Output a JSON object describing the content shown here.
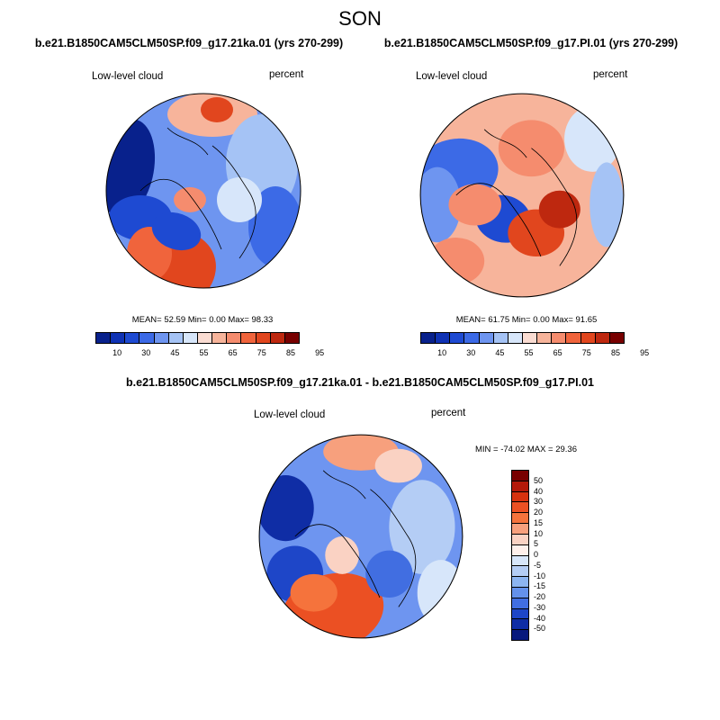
{
  "season": "SON",
  "panels": [
    {
      "title": "b.e21.B1850CAM5CLM50SP.f09_g17.21ka.01 (yrs 270-299)",
      "left_label": "Low-level cloud",
      "right_label": "percent",
      "stats": "MEAN=  52.59  Min=   0.00  Max=  98.33",
      "colorbar_ticks": [
        "10",
        "30",
        "45",
        "55",
        "65",
        "75",
        "85",
        "95"
      ]
    },
    {
      "title": "b.e21.B1850CAM5CLM50SP.f09_g17.PI.01 (yrs 270-299)",
      "left_label": "Low-level cloud",
      "right_label": "percent",
      "stats": "MEAN=  61.75  Min=   0.00  Max=  91.65",
      "colorbar_ticks": [
        "10",
        "30",
        "45",
        "55",
        "65",
        "75",
        "85",
        "95"
      ]
    }
  ],
  "diff_panel": {
    "title": "b.e21.B1850CAM5CLM50SP.f09_g17.21ka.01 - b.e21.B1850CAM5CLM50SP.f09_g17.PI.01",
    "left_label": "Low-level cloud",
    "right_label": "percent",
    "stats": "MIN = -74.02 MAX =  29.36",
    "colorbar_ticks": [
      "50",
      "40",
      "30",
      "20",
      "15",
      "10",
      "5",
      "0",
      "-5",
      "-10",
      "-15",
      "-20",
      "-30",
      "-40",
      "-50"
    ]
  },
  "colors": {
    "abs_scale": [
      "#08218c",
      "#0f32b4",
      "#1e4ad2",
      "#3c6ae6",
      "#6e95f0",
      "#a5c3f5",
      "#d7e6fa",
      "#fadcd2",
      "#f7b49b",
      "#f58c6e",
      "#f0643c",
      "#e1461e",
      "#be280f",
      "#780000"
    ],
    "diff_scale": [
      "#780000",
      "#b4190a",
      "#d7320f",
      "#eb5023",
      "#f5733c",
      "#f7a07d",
      "#fad2c3",
      "#fff0eb",
      "#d7e6fa",
      "#b4cdf5",
      "#8cb4f0",
      "#6491eb",
      "#416ee1",
      "#1e46c8",
      "#0f2da5",
      "#08197d"
    ]
  }
}
